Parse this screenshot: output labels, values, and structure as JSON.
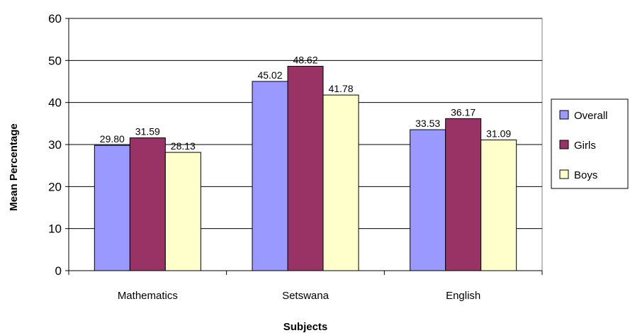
{
  "chart_data": {
    "type": "bar",
    "categories": [
      "Mathematics",
      "Setswana",
      "English"
    ],
    "series": [
      {
        "name": "Overall",
        "values": [
          29.8,
          45.02,
          33.53
        ],
        "color": "#9999ff"
      },
      {
        "name": "Girls",
        "values": [
          31.59,
          48.62,
          36.17
        ],
        "color": "#993366"
      },
      {
        "name": "Boys",
        "values": [
          28.13,
          41.78,
          31.09
        ],
        "color": "#ffffcc"
      }
    ],
    "data_labels": [
      [
        "29.80",
        "45.02",
        "33.53"
      ],
      [
        "31.59",
        "48.62",
        "36.17"
      ],
      [
        "28.13",
        "41.78",
        "31.09"
      ]
    ],
    "y_ticks": [
      "0",
      "10",
      "20",
      "30",
      "40",
      "50",
      "60"
    ],
    "ylim": [
      0,
      60
    ],
    "xlabel": "Subjects",
    "ylabel": "Mean Percentage",
    "grid": true,
    "legend_position": "right"
  }
}
